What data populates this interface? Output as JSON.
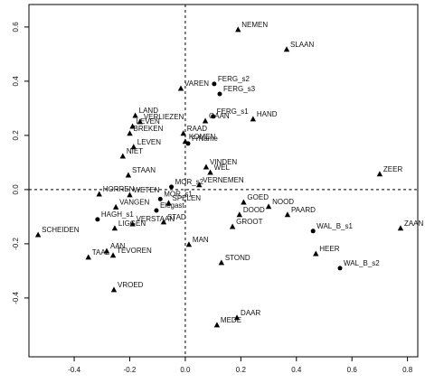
{
  "chart_data": {
    "type": "scatter",
    "xlim": [
      -0.563,
      0.837
    ],
    "ylim": [
      -0.617,
      0.683
    ],
    "xticks": [
      -0.4,
      -0.2,
      {
        "value": 0,
        "label": "0.0"
      },
      0.2,
      0.4,
      0.6,
      0.8
    ],
    "yticks": [
      -0.4,
      -0.2,
      {
        "value": 0,
        "label": "0.0"
      },
      0.2,
      0.4,
      0.6
    ],
    "zero_lines": true,
    "color": "#000000",
    "points": [
      {
        "label": "NEMEN",
        "x": 0.19,
        "y": 0.59,
        "marker": "triangle"
      },
      {
        "label": "SLAAN",
        "x": 0.365,
        "y": 0.517,
        "marker": "triangle"
      },
      {
        "label": "FERG_s2",
        "x": 0.104,
        "y": 0.39,
        "marker": "dot"
      },
      {
        "label": "VAREN",
        "x": -0.016,
        "y": 0.373,
        "marker": "triangle"
      },
      {
        "label": "FERG_s3",
        "x": 0.124,
        "y": 0.353,
        "marker": "dot"
      },
      {
        "label": "FERG_s1",
        "x": 0.1,
        "y": 0.27,
        "marker": "dot"
      },
      {
        "label": "HAND",
        "x": 0.244,
        "y": 0.26,
        "marker": "triangle"
      },
      {
        "label": "OAAN",
        "x": 0.072,
        "y": 0.253,
        "marker": "triangle"
      },
      {
        "label": "LAND",
        "x": -0.18,
        "y": 0.273,
        "marker": "triangle"
      },
      {
        "label": "VERLIEZEN",
        "x": -0.163,
        "y": 0.25,
        "marker": "triangle"
      },
      {
        "label": "LEVEN",
        "x": -0.19,
        "y": 0.233,
        "marker": "triangle"
      },
      {
        "label": "BREKEN",
        "x": -0.2,
        "y": 0.207,
        "marker": "triangle"
      },
      {
        "label": "RAAD",
        "x": -0.007,
        "y": 0.207,
        "marker": "triangle"
      },
      {
        "label": "KOMEN",
        "x": 0.0,
        "y": 0.177,
        "marker": "triangle"
      },
      {
        "label": "FrName",
        "x": 0.01,
        "y": 0.17,
        "marker": "dot"
      },
      {
        "label": "LEVEN",
        "x": -0.186,
        "y": 0.157,
        "marker": "triangle"
      },
      {
        "label": "NIET",
        "x": -0.225,
        "y": 0.123,
        "marker": "triangle"
      },
      {
        "label": "VINDEN",
        "x": 0.075,
        "y": 0.083,
        "marker": "triangle"
      },
      {
        "label": "WEL",
        "x": 0.09,
        "y": 0.063,
        "marker": "triangle"
      },
      {
        "label": "ZEER",
        "x": 0.7,
        "y": 0.057,
        "marker": "triangle"
      },
      {
        "label": "STAAN",
        "x": -0.205,
        "y": 0.053,
        "marker": "triangle"
      },
      {
        "label": "VERNEMEN",
        "x": 0.05,
        "y": 0.017,
        "marker": "triangle"
      },
      {
        "label": "MOR_s2",
        "x": -0.05,
        "y": 0.01,
        "marker": "dot"
      },
      {
        "label": "HORREN",
        "x": -0.31,
        "y": -0.017,
        "marker": "triangle"
      },
      {
        "label": "WETEN",
        "x": -0.2,
        "y": -0.02,
        "marker": "triangle"
      },
      {
        "label": "MOR_s1",
        "x": -0.09,
        "y": -0.035,
        "marker": "dot"
      },
      {
        "label": "SPELEN",
        "x": -0.06,
        "y": -0.05,
        "marker": "triangle"
      },
      {
        "label": "VANGEN",
        "x": -0.25,
        "y": -0.065,
        "marker": "triangle"
      },
      {
        "label": "GOED",
        "x": 0.21,
        "y": -0.047,
        "marker": "triangle"
      },
      {
        "label": "NOOD",
        "x": 0.3,
        "y": -0.063,
        "marker": "triangle"
      },
      {
        "label": "PAARD",
        "x": 0.368,
        "y": -0.093,
        "marker": "triangle"
      },
      {
        "label": "DOOD",
        "x": 0.195,
        "y": -0.093,
        "marker": "triangle"
      },
      {
        "label": "Elegast",
        "x": -0.104,
        "y": -0.077,
        "marker": "dot"
      },
      {
        "label": "HAGH_s1",
        "x": -0.316,
        "y": -0.11,
        "marker": "dot"
      },
      {
        "label": "STAD",
        "x": -0.078,
        "y": -0.12,
        "marker": "triangle"
      },
      {
        "label": "VERSTAAN",
        "x": -0.19,
        "y": -0.127,
        "marker": "triangle"
      },
      {
        "label": "GROOT",
        "x": 0.17,
        "y": -0.137,
        "marker": "triangle"
      },
      {
        "label": "LIGGEN",
        "x": -0.254,
        "y": -0.143,
        "marker": "triangle"
      },
      {
        "label": "WAL_B_s1",
        "x": 0.46,
        "y": -0.153,
        "marker": "dot"
      },
      {
        "label": "ZAAN",
        "x": 0.775,
        "y": -0.143,
        "marker": "triangle"
      },
      {
        "label": "SCHEIDEN",
        "x": -0.53,
        "y": -0.167,
        "marker": "triangle"
      },
      {
        "label": "MAN",
        "x": 0.013,
        "y": -0.203,
        "marker": "triangle"
      },
      {
        "label": "AAN",
        "x": -0.283,
        "y": -0.227,
        "marker": "triangle"
      },
      {
        "label": "HEER",
        "x": 0.47,
        "y": -0.237,
        "marker": "triangle"
      },
      {
        "label": "TEVOREN",
        "x": -0.26,
        "y": -0.243,
        "marker": "triangle"
      },
      {
        "label": "TAAL",
        "x": -0.349,
        "y": -0.25,
        "marker": "triangle"
      },
      {
        "label": "STOND",
        "x": 0.13,
        "y": -0.27,
        "marker": "triangle"
      },
      {
        "label": "WAL_B_s2",
        "x": 0.557,
        "y": -0.29,
        "marker": "dot"
      },
      {
        "label": "VROED",
        "x": -0.257,
        "y": -0.37,
        "marker": "triangle"
      },
      {
        "label": "DAAR",
        "x": 0.186,
        "y": -0.473,
        "marker": "triangle"
      },
      {
        "label": "MEDE",
        "x": 0.114,
        "y": -0.5,
        "marker": "triangle"
      }
    ]
  }
}
